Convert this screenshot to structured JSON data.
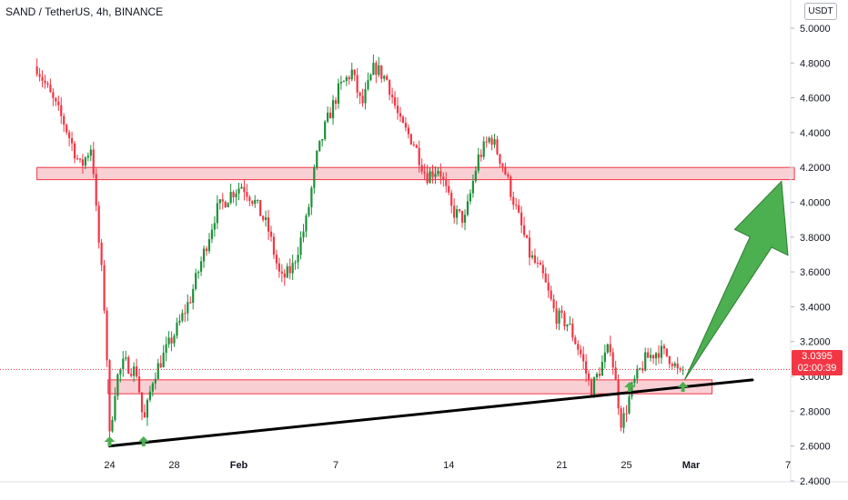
{
  "header": {
    "title": "SAND / TetherUS, 4h, BINANCE",
    "currency": "USDT"
  },
  "price_tag": {
    "price": "3.0395",
    "countdown": "02:00:39"
  },
  "colors": {
    "up": "#26a69a",
    "up_alt": "#1e8f3a",
    "down": "#f23645",
    "zone_fill": "#f7c8cc",
    "zone_stroke": "#f23645",
    "trendline": "#000000",
    "arrow_fill": "#4caf50",
    "arrow_stroke": "#2e7d32",
    "axis_text": "#131722"
  },
  "chart_data": {
    "type": "candlestick",
    "symbol": "SAND / TetherUS",
    "interval": "4h",
    "exchange": "BINANCE",
    "ylim": [
      2.4,
      5.0
    ],
    "y_ticks": [
      "5.0000",
      "4.8000",
      "4.6000",
      "4.4000",
      "4.2000",
      "4.0000",
      "3.8000",
      "3.6000",
      "3.4000",
      "3.2000",
      "3.0000",
      "2.8000",
      "2.6000",
      "2.4000"
    ],
    "x_ticks": [
      "24",
      "28",
      "Feb",
      "7",
      "14",
      "21",
      "25",
      "Mar",
      "7"
    ],
    "x_tick_days": [
      24,
      28,
      32,
      38,
      45,
      52,
      56,
      60,
      66
    ],
    "x_range_days": [
      19.3,
      68.1
    ],
    "last_price": 3.0395,
    "price_path": [
      [
        19.5,
        4.78
      ],
      [
        20.3,
        4.62
      ],
      [
        21.2,
        4.45
      ],
      [
        22.2,
        4.2
      ],
      [
        22.9,
        4.33
      ],
      [
        23.2,
        3.9
      ],
      [
        23.6,
        3.5
      ],
      [
        23.8,
        3.2
      ],
      [
        24.0,
        2.65
      ],
      [
        24.4,
        2.98
      ],
      [
        24.9,
        3.08
      ],
      [
        25.7,
        3.02
      ],
      [
        26.1,
        2.72
      ],
      [
        26.7,
        3.0
      ],
      [
        27.5,
        3.15
      ],
      [
        28.2,
        3.28
      ],
      [
        29.0,
        3.45
      ],
      [
        29.8,
        3.7
      ],
      [
        30.6,
        3.95
      ],
      [
        31.5,
        4.05
      ],
      [
        32.2,
        4.1
      ],
      [
        33.0,
        4.0
      ],
      [
        33.8,
        3.85
      ],
      [
        34.6,
        3.55
      ],
      [
        35.3,
        3.62
      ],
      [
        36.2,
        3.9
      ],
      [
        36.8,
        4.25
      ],
      [
        37.4,
        4.45
      ],
      [
        38.2,
        4.65
      ],
      [
        39.0,
        4.75
      ],
      [
        39.6,
        4.55
      ],
      [
        40.4,
        4.78
      ],
      [
        41.2,
        4.7
      ],
      [
        42.0,
        4.45
      ],
      [
        42.8,
        4.35
      ],
      [
        43.6,
        4.15
      ],
      [
        44.4,
        4.2
      ],
      [
        45.2,
        3.95
      ],
      [
        46.0,
        3.9
      ],
      [
        46.8,
        4.25
      ],
      [
        47.6,
        4.38
      ],
      [
        48.4,
        4.2
      ],
      [
        49.2,
        3.95
      ],
      [
        50.0,
        3.7
      ],
      [
        50.8,
        3.58
      ],
      [
        51.6,
        3.35
      ],
      [
        52.4,
        3.3
      ],
      [
        53.2,
        3.12
      ],
      [
        53.8,
        2.92
      ],
      [
        54.4,
        3.05
      ],
      [
        55.0,
        3.18
      ],
      [
        55.7,
        2.72
      ],
      [
        56.4,
        2.95
      ],
      [
        57.2,
        3.1
      ],
      [
        58.0,
        3.15
      ],
      [
        58.8,
        3.1
      ],
      [
        59.3,
        3.0
      ],
      [
        59.6,
        3.04
      ]
    ],
    "annotations": {
      "resistance_zone": {
        "y_low": 4.13,
        "y_high": 4.2,
        "x_start_day": 19.5,
        "x_end_day": 66.4
      },
      "support_zone": {
        "y_low": 2.9,
        "y_high": 2.98,
        "x_start_day": 23.9,
        "x_end_day": 61.3
      },
      "trendline": [
        [
          24.0,
          2.6
        ],
        [
          63.8,
          2.98
        ]
      ],
      "bounce_markers_days": [
        24.0,
        26.1,
        56.2,
        59.5
      ],
      "projection_arrow": {
        "from": [
          59.6,
          2.98
        ],
        "to": [
          65.6,
          4.12
        ]
      }
    }
  }
}
